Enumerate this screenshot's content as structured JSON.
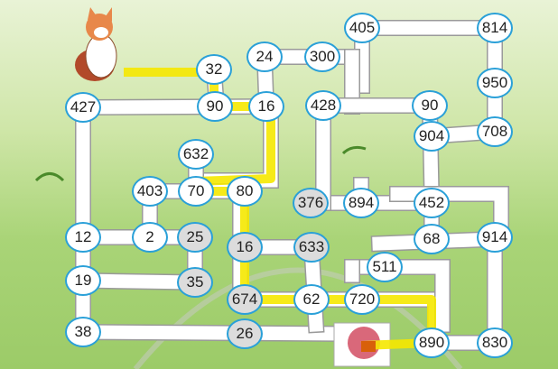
{
  "puzzle": {
    "type": "number-maze",
    "start": "cat",
    "goal": "yarn-ball",
    "colors": {
      "corridor": "#ffffff",
      "node_border": "#2aa0d8",
      "highlight": "#f5e800",
      "yarn": "#d9687a"
    },
    "nodes": [
      {
        "id": "n32",
        "label": "32"
      },
      {
        "id": "n24",
        "label": "24"
      },
      {
        "id": "n300",
        "label": "300"
      },
      {
        "id": "n405",
        "label": "405"
      },
      {
        "id": "n814",
        "label": "814"
      },
      {
        "id": "n950",
        "label": "950"
      },
      {
        "id": "n427",
        "label": "427"
      },
      {
        "id": "n90a",
        "label": "90"
      },
      {
        "id": "n16a",
        "label": "16"
      },
      {
        "id": "n428",
        "label": "428"
      },
      {
        "id": "n90b",
        "label": "90"
      },
      {
        "id": "n904",
        "label": "904"
      },
      {
        "id": "n708",
        "label": "708"
      },
      {
        "id": "n632",
        "label": "632"
      },
      {
        "id": "n403",
        "label": "403"
      },
      {
        "id": "n70",
        "label": "70"
      },
      {
        "id": "n80",
        "label": "80"
      },
      {
        "id": "n376",
        "label": "376"
      },
      {
        "id": "n894",
        "label": "894"
      },
      {
        "id": "n452",
        "label": "452"
      },
      {
        "id": "n12",
        "label": "12"
      },
      {
        "id": "n2",
        "label": "2"
      },
      {
        "id": "n25",
        "label": "25"
      },
      {
        "id": "n68",
        "label": "68"
      },
      {
        "id": "n914",
        "label": "914"
      },
      {
        "id": "n16b",
        "label": "16"
      },
      {
        "id": "n633",
        "label": "633"
      },
      {
        "id": "n511",
        "label": "511"
      },
      {
        "id": "n19",
        "label": "19"
      },
      {
        "id": "n35",
        "label": "35"
      },
      {
        "id": "n674",
        "label": "674"
      },
      {
        "id": "n62",
        "label": "62"
      },
      {
        "id": "n720",
        "label": "720"
      },
      {
        "id": "n38",
        "label": "38"
      },
      {
        "id": "n26",
        "label": "26"
      },
      {
        "id": "n890",
        "label": "890"
      },
      {
        "id": "n830",
        "label": "830"
      }
    ],
    "highlighted_path": [
      "32",
      "90",
      "16",
      "632",
      "70",
      "80",
      "674",
      "62",
      "720",
      "890"
    ]
  }
}
